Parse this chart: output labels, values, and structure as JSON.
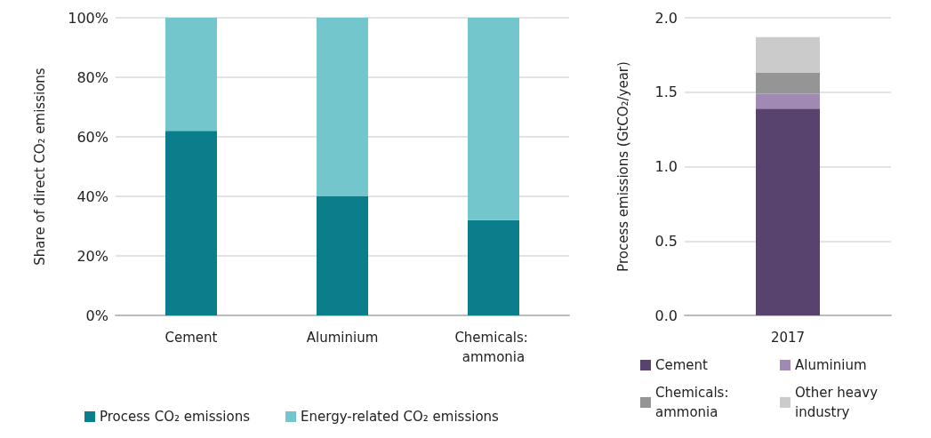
{
  "chart_data": [
    {
      "type": "bar",
      "ylabel": "Share of direct CO₂ emissions",
      "categories": [
        "Cement",
        "Aluminium",
        "Chemicals: ammonia"
      ],
      "stacked": true,
      "series": [
        {
          "name": "Process CO₂ emissions",
          "color": "#0a7e8a",
          "values": [
            62,
            40,
            32
          ]
        },
        {
          "name": "Energy-related CO₂ emissions",
          "color": "#72c6cc",
          "values": [
            38,
            60,
            68
          ]
        }
      ],
      "ylim": [
        0,
        100
      ],
      "yticks": [
        {
          "value": 0,
          "label": "0%"
        },
        {
          "value": 20,
          "label": "20%"
        },
        {
          "value": 40,
          "label": "40%"
        },
        {
          "value": 60,
          "label": "60%"
        },
        {
          "value": 80,
          "label": "80%"
        },
        {
          "value": 100,
          "label": "100%"
        }
      ],
      "grid": "y",
      "legend": "bottom"
    },
    {
      "type": "bar",
      "ylabel": "Process emissions (GtCO₂/year)",
      "categories": [
        "2017"
      ],
      "stacked": true,
      "series": [
        {
          "name": "Cement",
          "color": "#58436e",
          "values": [
            1.39
          ]
        },
        {
          "name": "Aluminium",
          "color": "#a08ab3",
          "values": [
            0.1
          ]
        },
        {
          "name": "Chemicals: ammonia",
          "color": "#959595",
          "values": [
            0.14
          ]
        },
        {
          "name": "Other heavy industry",
          "color": "#cbcbcb",
          "values": [
            0.24
          ]
        }
      ],
      "ylim": [
        0,
        2
      ],
      "yticks": [
        {
          "value": 0,
          "label": "0.0"
        },
        0.5,
        {
          "value": 1,
          "label": "1.0"
        },
        1.5,
        {
          "value": 2,
          "label": "2.0"
        }
      ],
      "grid": "y",
      "legend": "bottom"
    }
  ]
}
